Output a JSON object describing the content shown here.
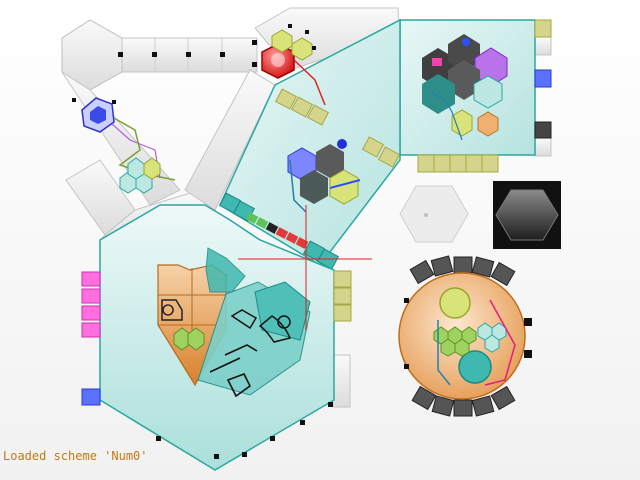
{
  "status": {
    "message": "Loaded scheme 'Num0'"
  },
  "colors": {
    "corridor": "#ececec",
    "teal_fill": "#c8ece9",
    "teal_stroke": "#2aa7a0",
    "orange": "#e7a05a",
    "olive": "#d2d27a",
    "magenta": "#ff4fd8",
    "blue_port": "#4b5cff",
    "red_core": "#ff3d3d",
    "dark_hex": "#4a4a4a"
  },
  "icons": {
    "orange_module": "machinery-icon",
    "teal_module": "device-icon",
    "red_core": "reactor-core-icon",
    "round_station": "circular-station-icon"
  }
}
